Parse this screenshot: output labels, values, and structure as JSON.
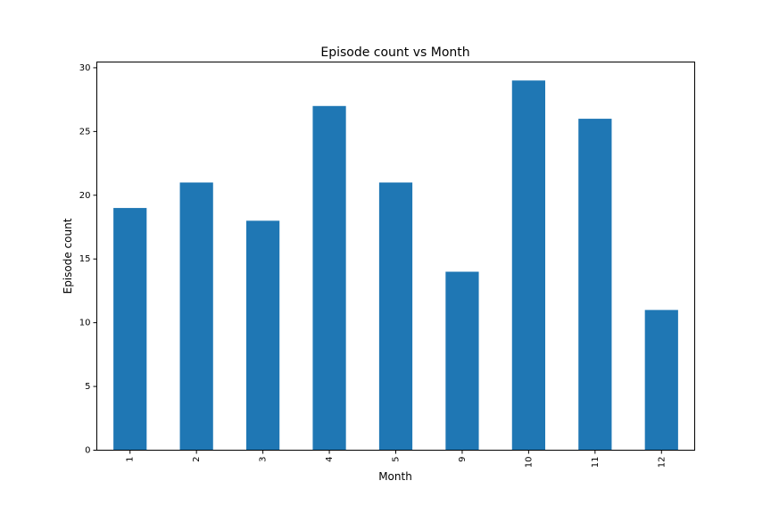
{
  "chart_data": {
    "type": "bar",
    "title": "Episode count vs Month",
    "xlabel": "Month",
    "ylabel": "Episode count",
    "categories": [
      "1",
      "2",
      "3",
      "4",
      "5",
      "9",
      "10",
      "11",
      "12"
    ],
    "values": [
      19,
      21,
      18,
      27,
      21,
      14,
      29,
      26,
      11
    ],
    "ylim": [
      0,
      30.45
    ],
    "yticks": [
      0,
      5,
      10,
      15,
      20,
      25,
      30
    ],
    "bar_color": "#1f77b4",
    "grid": false,
    "legend": "none",
    "xtick_rotation": "vertical"
  }
}
